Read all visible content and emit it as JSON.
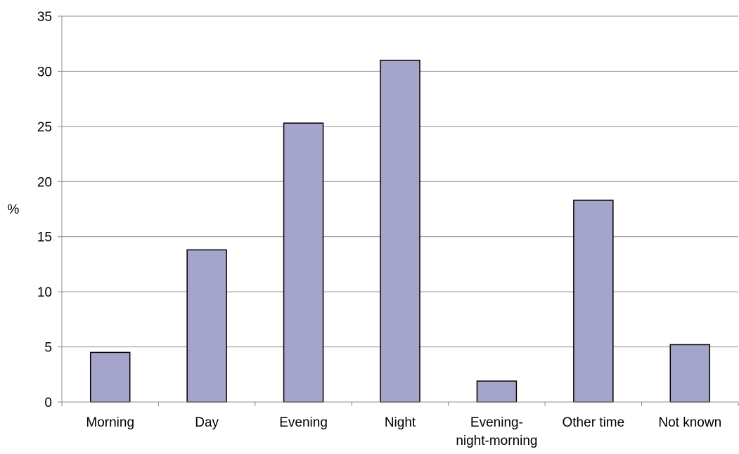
{
  "chart_data": {
    "type": "bar",
    "title": "",
    "xlabel": "",
    "ylabel": "%",
    "ylim": [
      0,
      35
    ],
    "yticks": [
      0,
      5,
      10,
      15,
      20,
      25,
      30,
      35
    ],
    "grid": true,
    "legend": "none",
    "categories": [
      [
        "Morning"
      ],
      [
        "Day"
      ],
      [
        "Evening"
      ],
      [
        "Night"
      ],
      [
        "Evening-",
        "night-morning"
      ],
      [
        "Other time"
      ],
      [
        "Not known"
      ]
    ],
    "values": [
      4.5,
      13.8,
      25.3,
      31.0,
      1.9,
      18.3,
      5.2
    ],
    "colors": {
      "bar_fill": "#a5a5cc",
      "bar_stroke": "#000000",
      "gridline": "#8c8c8c",
      "axis": "#8c8c8c"
    }
  }
}
